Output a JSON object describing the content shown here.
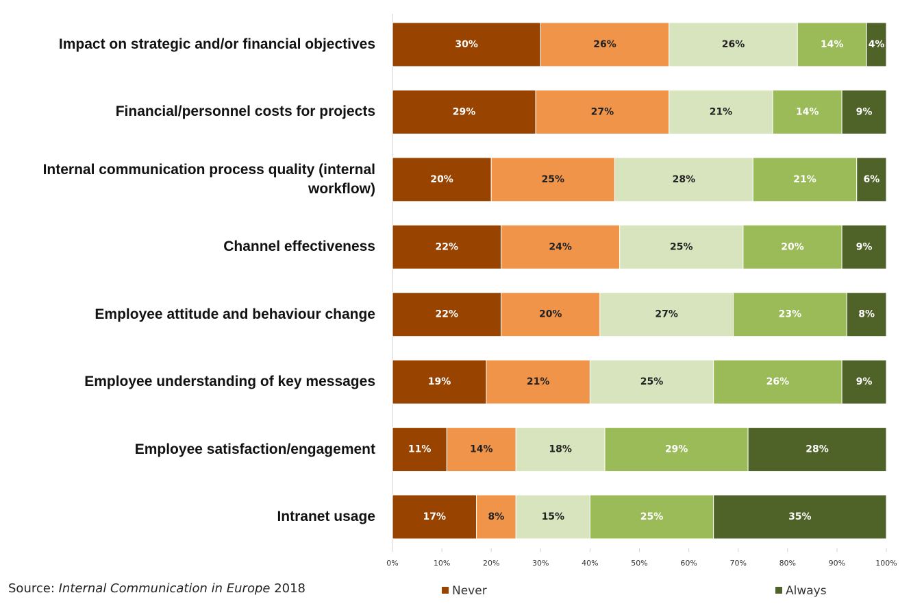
{
  "chart_data": {
    "type": "stacked_barh",
    "categories": [
      "Impact on strategic and/or financial objectives",
      "Financial/personnel costs for projects",
      "Internal communication process quality (internal workflow)",
      "Channel effectiveness",
      "Employee attitude and behaviour change",
      "Employee understanding of key messages",
      "Employee satisfaction/engagement",
      "Intranet usage"
    ],
    "series": [
      {
        "name": "Never",
        "color": "#994300",
        "label_color": "#ffffff",
        "values": [
          30,
          29,
          20,
          22,
          22,
          19,
          11,
          17
        ],
        "value_labels": [
          "30%",
          "29%",
          "20%",
          "22%",
          "22%",
          "19%",
          "11%",
          "17%"
        ]
      },
      {
        "color": "#F0944A",
        "label_color": "#222222",
        "values": [
          26,
          27,
          25,
          24,
          20,
          21,
          14,
          8
        ],
        "value_labels": [
          "26%",
          "27%",
          "25%",
          "24%",
          "20%",
          "21%",
          "14%",
          "8%"
        ]
      },
      {
        "color": "#D7E4BD",
        "label_color": "#222222",
        "values": [
          26,
          21,
          28,
          25,
          27,
          25,
          18,
          15
        ],
        "value_labels": [
          "26%",
          "21%",
          "28%",
          "25%",
          "27%",
          "25%",
          "18%",
          "15%"
        ]
      },
      {
        "color": "#9BBB59",
        "label_color": "#ffffff",
        "values": [
          14,
          14,
          21,
          20,
          23,
          26,
          29,
          25
        ],
        "value_labels": [
          "14%",
          "14%",
          "21%",
          "20%",
          "23%",
          "26%",
          "29%",
          "25%"
        ]
      },
      {
        "name": "Always",
        "color": "#4F6228",
        "label_color": "#ffffff",
        "values": [
          4,
          9,
          6,
          9,
          8,
          9,
          28,
          35
        ],
        "value_labels": [
          "4%",
          "9%",
          "6%",
          "9%",
          "8%",
          "9%",
          "28%",
          "35%"
        ]
      }
    ],
    "xlim": [
      0,
      100
    ],
    "xticks": [
      {
        "value": 0,
        "label": "0%"
      },
      {
        "value": 10,
        "label": "10%"
      },
      {
        "value": 20,
        "label": "20%"
      },
      {
        "value": 30,
        "label": "30%"
      },
      {
        "value": 40,
        "label": "40%"
      },
      {
        "value": 50,
        "label": "50%"
      },
      {
        "value": 60,
        "label": "60%"
      },
      {
        "value": 70,
        "label": "70%"
      },
      {
        "value": 80,
        "label": "80%"
      },
      {
        "value": 90,
        "label": "90%"
      },
      {
        "value": 100,
        "label": "100%"
      }
    ],
    "legend": "bottom",
    "source": {
      "label": "Source:",
      "title": "Internal Communication in Europe",
      "year": "2018"
    }
  }
}
